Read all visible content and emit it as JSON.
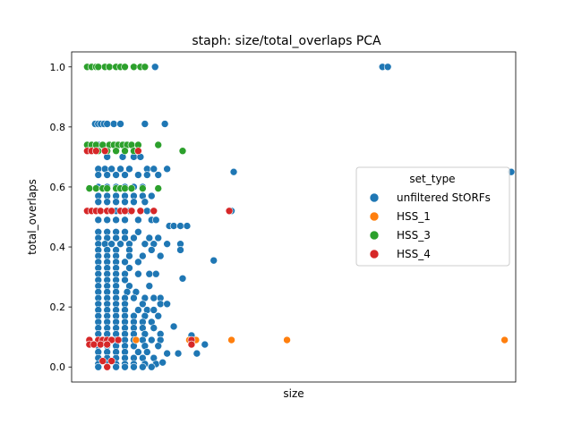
{
  "chart_data": {
    "type": "scatter",
    "title": "staph: size/total_overlaps PCA",
    "xlabel": "size",
    "ylabel": "total_overlaps",
    "xlim": [
      0,
      1000
    ],
    "ylim": [
      -0.05,
      1.05
    ],
    "x_ticks_shown": false,
    "y_ticks": [
      0.0,
      0.2,
      0.4,
      0.6,
      0.8,
      1.0
    ],
    "y_tick_labels": [
      "0.0",
      "0.2",
      "0.4",
      "0.6",
      "0.8",
      "1.0"
    ],
    "grid": false,
    "legend": {
      "title": "set_type",
      "placement": "center-right",
      "entries": [
        "unfiltered StORFs",
        "HSS_1",
        "HSS_3",
        "HSS_4"
      ]
    },
    "colors": {
      "unfiltered StORFs": "#1f77b4",
      "HSS_1": "#ff7f0e",
      "HSS_3": "#2ca02c",
      "HSS_4": "#d62728"
    },
    "series": [
      {
        "name": "unfiltered StORFs",
        "points": [
          [
            188,
            1.0
          ],
          [
            700,
            1.0
          ],
          [
            712,
            1.0
          ],
          [
            53,
            0.81
          ],
          [
            60,
            0.81
          ],
          [
            66,
            0.81
          ],
          [
            73,
            0.81
          ],
          [
            80,
            0.81
          ],
          [
            95,
            0.81
          ],
          [
            110,
            0.81
          ],
          [
            165,
            0.81
          ],
          [
            210,
            0.81
          ],
          [
            60,
            0.74
          ],
          [
            70,
            0.74
          ],
          [
            85,
            0.74
          ],
          [
            100,
            0.74
          ],
          [
            120,
            0.74
          ],
          [
            80,
            0.7
          ],
          [
            115,
            0.7
          ],
          [
            140,
            0.7
          ],
          [
            155,
            0.7
          ],
          [
            60,
            0.66
          ],
          [
            75,
            0.66
          ],
          [
            90,
            0.66
          ],
          [
            110,
            0.66
          ],
          [
            130,
            0.66
          ],
          [
            170,
            0.66
          ],
          [
            185,
            0.66
          ],
          [
            215,
            0.66
          ],
          [
            60,
            0.64
          ],
          [
            80,
            0.64
          ],
          [
            100,
            0.64
          ],
          [
            120,
            0.64
          ],
          [
            150,
            0.64
          ],
          [
            170,
            0.64
          ],
          [
            195,
            0.64
          ],
          [
            365,
            0.65
          ],
          [
            990,
            0.65
          ],
          [
            60,
            0.6
          ],
          [
            80,
            0.6
          ],
          [
            100,
            0.6
          ],
          [
            120,
            0.6
          ],
          [
            140,
            0.6
          ],
          [
            160,
            0.6
          ],
          [
            60,
            0.57
          ],
          [
            80,
            0.57
          ],
          [
            100,
            0.57
          ],
          [
            120,
            0.57
          ],
          [
            140,
            0.57
          ],
          [
            160,
            0.57
          ],
          [
            180,
            0.57
          ],
          [
            60,
            0.55
          ],
          [
            80,
            0.55
          ],
          [
            100,
            0.55
          ],
          [
            120,
            0.55
          ],
          [
            140,
            0.55
          ],
          [
            165,
            0.55
          ],
          [
            60,
            0.52
          ],
          [
            80,
            0.52
          ],
          [
            100,
            0.52
          ],
          [
            130,
            0.52
          ],
          [
            170,
            0.52
          ],
          [
            360,
            0.52
          ],
          [
            60,
            0.49
          ],
          [
            80,
            0.49
          ],
          [
            100,
            0.49
          ],
          [
            120,
            0.49
          ],
          [
            150,
            0.49
          ],
          [
            180,
            0.49
          ],
          [
            190,
            0.49
          ],
          [
            220,
            0.47
          ],
          [
            230,
            0.47
          ],
          [
            245,
            0.47
          ],
          [
            260,
            0.47
          ],
          [
            60,
            0.45
          ],
          [
            80,
            0.45
          ],
          [
            100,
            0.45
          ],
          [
            120,
            0.45
          ],
          [
            150,
            0.45
          ],
          [
            60,
            0.43
          ],
          [
            80,
            0.43
          ],
          [
            100,
            0.43
          ],
          [
            120,
            0.43
          ],
          [
            140,
            0.43
          ],
          [
            175,
            0.43
          ],
          [
            195,
            0.43
          ],
          [
            60,
            0.41
          ],
          [
            75,
            0.41
          ],
          [
            90,
            0.41
          ],
          [
            110,
            0.41
          ],
          [
            130,
            0.41
          ],
          [
            165,
            0.41
          ],
          [
            185,
            0.41
          ],
          [
            215,
            0.41
          ],
          [
            245,
            0.41
          ],
          [
            60,
            0.39
          ],
          [
            80,
            0.39
          ],
          [
            100,
            0.39
          ],
          [
            130,
            0.39
          ],
          [
            180,
            0.39
          ],
          [
            60,
            0.37
          ],
          [
            80,
            0.37
          ],
          [
            100,
            0.37
          ],
          [
            130,
            0.37
          ],
          [
            160,
            0.37
          ],
          [
            200,
            0.37
          ],
          [
            245,
            0.39
          ],
          [
            60,
            0.35
          ],
          [
            80,
            0.35
          ],
          [
            100,
            0.35
          ],
          [
            120,
            0.35
          ],
          [
            150,
            0.35
          ],
          [
            320,
            0.355
          ],
          [
            60,
            0.33
          ],
          [
            80,
            0.33
          ],
          [
            100,
            0.33
          ],
          [
            130,
            0.33
          ],
          [
            60,
            0.31
          ],
          [
            80,
            0.31
          ],
          [
            100,
            0.31
          ],
          [
            120,
            0.31
          ],
          [
            150,
            0.31
          ],
          [
            175,
            0.31
          ],
          [
            190,
            0.31
          ],
          [
            60,
            0.29
          ],
          [
            80,
            0.29
          ],
          [
            100,
            0.29
          ],
          [
            120,
            0.29
          ],
          [
            250,
            0.295
          ],
          [
            60,
            0.27
          ],
          [
            80,
            0.27
          ],
          [
            100,
            0.27
          ],
          [
            130,
            0.27
          ],
          [
            175,
            0.27
          ],
          [
            60,
            0.25
          ],
          [
            80,
            0.25
          ],
          [
            100,
            0.25
          ],
          [
            125,
            0.25
          ],
          [
            145,
            0.25
          ],
          [
            60,
            0.23
          ],
          [
            80,
            0.23
          ],
          [
            100,
            0.23
          ],
          [
            120,
            0.23
          ],
          [
            140,
            0.23
          ],
          [
            165,
            0.23
          ],
          [
            185,
            0.23
          ],
          [
            200,
            0.23
          ],
          [
            60,
            0.21
          ],
          [
            80,
            0.21
          ],
          [
            100,
            0.21
          ],
          [
            120,
            0.21
          ],
          [
            160,
            0.21
          ],
          [
            200,
            0.21
          ],
          [
            215,
            0.21
          ],
          [
            60,
            0.19
          ],
          [
            80,
            0.19
          ],
          [
            100,
            0.19
          ],
          [
            120,
            0.19
          ],
          [
            150,
            0.19
          ],
          [
            170,
            0.19
          ],
          [
            185,
            0.19
          ],
          [
            60,
            0.17
          ],
          [
            80,
            0.17
          ],
          [
            100,
            0.17
          ],
          [
            120,
            0.17
          ],
          [
            140,
            0.17
          ],
          [
            165,
            0.17
          ],
          [
            195,
            0.17
          ],
          [
            60,
            0.15
          ],
          [
            80,
            0.15
          ],
          [
            100,
            0.15
          ],
          [
            120,
            0.15
          ],
          [
            140,
            0.15
          ],
          [
            160,
            0.15
          ],
          [
            180,
            0.15
          ],
          [
            60,
            0.13
          ],
          [
            80,
            0.13
          ],
          [
            100,
            0.13
          ],
          [
            120,
            0.13
          ],
          [
            140,
            0.13
          ],
          [
            160,
            0.13
          ],
          [
            185,
            0.13
          ],
          [
            230,
            0.135
          ],
          [
            60,
            0.11
          ],
          [
            80,
            0.11
          ],
          [
            100,
            0.11
          ],
          [
            120,
            0.11
          ],
          [
            140,
            0.11
          ],
          [
            165,
            0.11
          ],
          [
            200,
            0.11
          ],
          [
            60,
            0.09
          ],
          [
            80,
            0.09
          ],
          [
            100,
            0.09
          ],
          [
            120,
            0.09
          ],
          [
            140,
            0.09
          ],
          [
            160,
            0.09
          ],
          [
            180,
            0.09
          ],
          [
            200,
            0.09
          ],
          [
            270,
            0.105
          ],
          [
            282,
            0.045
          ],
          [
            300,
            0.075
          ],
          [
            60,
            0.07
          ],
          [
            80,
            0.07
          ],
          [
            100,
            0.07
          ],
          [
            120,
            0.07
          ],
          [
            140,
            0.07
          ],
          [
            165,
            0.07
          ],
          [
            195,
            0.07
          ],
          [
            60,
            0.05
          ],
          [
            80,
            0.05
          ],
          [
            100,
            0.05
          ],
          [
            120,
            0.05
          ],
          [
            150,
            0.05
          ],
          [
            170,
            0.05
          ],
          [
            215,
            0.045
          ],
          [
            240,
            0.045
          ],
          [
            60,
            0.03
          ],
          [
            80,
            0.03
          ],
          [
            100,
            0.03
          ],
          [
            120,
            0.03
          ],
          [
            140,
            0.03
          ],
          [
            160,
            0.03
          ],
          [
            185,
            0.03
          ],
          [
            60,
            0.01
          ],
          [
            80,
            0.01
          ],
          [
            100,
            0.01
          ],
          [
            120,
            0.01
          ],
          [
            140,
            0.01
          ],
          [
            165,
            0.01
          ],
          [
            190,
            0.01
          ],
          [
            60,
            0.0
          ],
          [
            80,
            0.0
          ],
          [
            100,
            0.0
          ],
          [
            120,
            0.0
          ],
          [
            140,
            0.0
          ],
          [
            160,
            0.0
          ],
          [
            180,
            0.0
          ],
          [
            205,
            0.015
          ]
        ]
      },
      {
        "name": "HSS_1",
        "points": [
          [
            145,
            0.09
          ],
          [
            265,
            0.09
          ],
          [
            280,
            0.09
          ],
          [
            360,
            0.09
          ],
          [
            485,
            0.09
          ],
          [
            975,
            0.09
          ]
        ]
      },
      {
        "name": "HSS_3",
        "points": [
          [
            35,
            1.0
          ],
          [
            45,
            1.0
          ],
          [
            55,
            1.0
          ],
          [
            60,
            1.0
          ],
          [
            75,
            1.0
          ],
          [
            85,
            1.0
          ],
          [
            100,
            1.0
          ],
          [
            110,
            1.0
          ],
          [
            120,
            1.0
          ],
          [
            140,
            1.0
          ],
          [
            155,
            1.0
          ],
          [
            165,
            1.0
          ],
          [
            35,
            0.74
          ],
          [
            45,
            0.74
          ],
          [
            55,
            0.74
          ],
          [
            70,
            0.74
          ],
          [
            85,
            0.74
          ],
          [
            95,
            0.74
          ],
          [
            105,
            0.74
          ],
          [
            115,
            0.74
          ],
          [
            125,
            0.74
          ],
          [
            135,
            0.74
          ],
          [
            150,
            0.74
          ],
          [
            195,
            0.74
          ],
          [
            40,
            0.72
          ],
          [
            60,
            0.72
          ],
          [
            80,
            0.72
          ],
          [
            100,
            0.72
          ],
          [
            120,
            0.72
          ],
          [
            140,
            0.72
          ],
          [
            250,
            0.72
          ],
          [
            40,
            0.595
          ],
          [
            55,
            0.595
          ],
          [
            70,
            0.595
          ],
          [
            80,
            0.595
          ],
          [
            100,
            0.595
          ],
          [
            110,
            0.595
          ],
          [
            120,
            0.595
          ],
          [
            135,
            0.595
          ],
          [
            160,
            0.595
          ],
          [
            195,
            0.595
          ]
        ]
      },
      {
        "name": "HSS_4",
        "points": [
          [
            35,
            0.72
          ],
          [
            45,
            0.72
          ],
          [
            55,
            0.72
          ],
          [
            75,
            0.72
          ],
          [
            150,
            0.72
          ],
          [
            35,
            0.52
          ],
          [
            45,
            0.52
          ],
          [
            55,
            0.52
          ],
          [
            65,
            0.52
          ],
          [
            80,
            0.52
          ],
          [
            90,
            0.52
          ],
          [
            110,
            0.52
          ],
          [
            120,
            0.52
          ],
          [
            135,
            0.52
          ],
          [
            155,
            0.52
          ],
          [
            185,
            0.52
          ],
          [
            355,
            0.52
          ],
          [
            40,
            0.09
          ],
          [
            60,
            0.09
          ],
          [
            70,
            0.09
          ],
          [
            80,
            0.09
          ],
          [
            90,
            0.09
          ],
          [
            105,
            0.09
          ],
          [
            270,
            0.09
          ],
          [
            40,
            0.075
          ],
          [
            50,
            0.075
          ],
          [
            65,
            0.075
          ],
          [
            80,
            0.075
          ],
          [
            270,
            0.075
          ],
          [
            70,
            0.02
          ],
          [
            90,
            0.02
          ],
          [
            80,
            0.0
          ]
        ]
      }
    ]
  }
}
